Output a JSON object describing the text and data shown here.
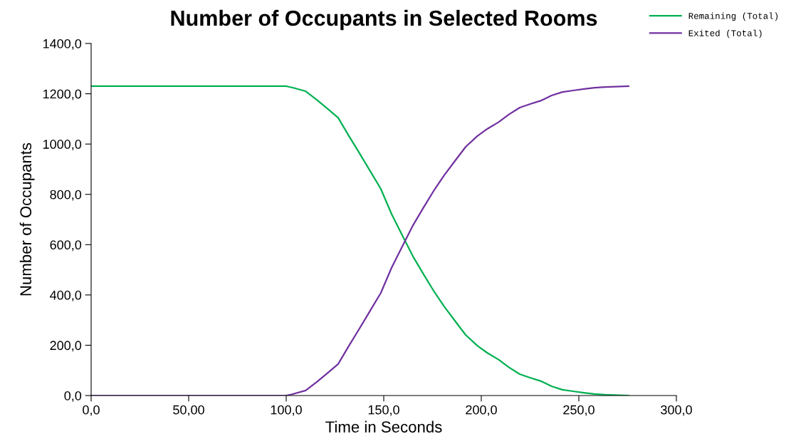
{
  "chart_data": {
    "type": "line",
    "title": "Number of Occupants in Selected Rooms",
    "xlabel": "Time in Seconds",
    "ylabel": "Number of Occupants",
    "x": [
      0,
      100,
      103,
      110,
      115.7,
      121,
      126.6,
      132,
      137.6,
      143,
      148.5,
      154,
      159.5,
      165,
      170.4,
      176,
      181,
      187,
      192,
      198,
      203,
      209,
      214,
      219.7,
      225,
      230.7,
      236,
      241.6,
      247,
      252.6,
      258,
      263.5,
      275.5
    ],
    "series": [
      {
        "name": "Remaining (Total)",
        "color": "#00b050",
        "values": [
          1230,
          1230,
          1225,
          1210,
          1176,
          1142,
          1105,
          1034,
          963,
          893,
          822,
          722,
          637,
          553,
          482,
          411,
          354,
          292,
          241,
          198,
          170,
          142,
          113,
          85,
          71,
          57,
          37,
          23,
          17,
          11,
          6,
          3,
          0
        ]
      },
      {
        "name": "Exited (Total)",
        "color": "#7030a0",
        "values": [
          0,
          0,
          5,
          20,
          54,
          88,
          125,
          196,
          267,
          337,
          408,
          508,
          593,
          677,
          748,
          819,
          876,
          938,
          989,
          1032,
          1060,
          1088,
          1117,
          1145,
          1159,
          1173,
          1193,
          1207,
          1213,
          1219,
          1224,
          1227,
          1230
        ]
      }
    ],
    "xlim": [
      0,
      300
    ],
    "ylim": [
      0,
      1400
    ],
    "xticks": [
      {
        "value": 0,
        "label": "0,0"
      },
      {
        "value": 50,
        "label": "50,00"
      },
      {
        "value": 100,
        "label": "100,0"
      },
      {
        "value": 150,
        "label": "150,0"
      },
      {
        "value": 200,
        "label": "200,0"
      },
      {
        "value": 250,
        "label": "250,0"
      },
      {
        "value": 300,
        "label": "300,0"
      }
    ],
    "yticks": [
      {
        "value": 0,
        "label": "0,0"
      },
      {
        "value": 200,
        "label": "200,0"
      },
      {
        "value": 400,
        "label": "400,0"
      },
      {
        "value": 600,
        "label": "600,0"
      },
      {
        "value": 800,
        "label": "800,0"
      },
      {
        "value": 1000,
        "label": "1000,0"
      },
      {
        "value": 1200,
        "label": "1200,0"
      },
      {
        "value": 1400,
        "label": "1400,0"
      }
    ],
    "grid": false,
    "legend": "top right",
    "marker": "none",
    "line_style": "solid"
  }
}
